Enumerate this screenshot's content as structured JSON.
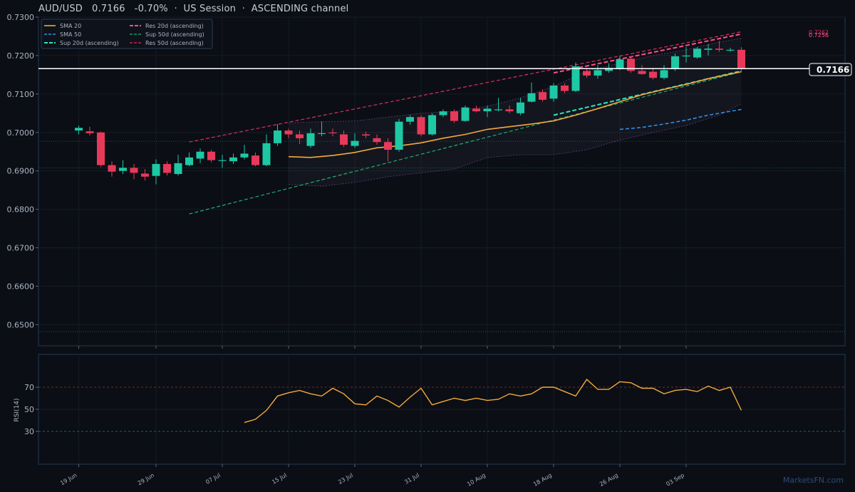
{
  "header": {
    "symbol": "AUD/USD",
    "price": "0.7166",
    "change": "-0.70%",
    "session": "US Session",
    "channel": "ASCENDING channel"
  },
  "watermark": "MarketsFN.com",
  "price_tag": "0.7166",
  "res_label_50d": "0.7262",
  "res_label_20d": "0.7256",
  "colors": {
    "up": "#1ec8a5",
    "down": "#e8395a",
    "sma20": "#f4a93c",
    "sma50": "#2e8fe8",
    "sup20": "#2ee6c1",
    "sup50": "#1fae74",
    "res20": "#ff4f8e",
    "res50": "#d8315b",
    "rsi": "#f4a93c"
  },
  "chart_data": [
    {
      "type": "candlestick",
      "title": "AUD/USD 0.7166 -0.70% · US Session · ASCENDING channel",
      "ylim": [
        0.6445,
        0.73
      ],
      "y_ticks": [
        "0.7300",
        "0.7200",
        "0.7100",
        "0.7000",
        "0.6900",
        "0.6800",
        "0.6700",
        "0.6600",
        "0.6500"
      ],
      "x_ticks": [
        "19 Jun",
        "29 Jun",
        "07 Jul",
        "15 Jul",
        "23 Jul",
        "31 Jul",
        "10 Aug",
        "18 Aug",
        "26 Aug",
        "03 Sep"
      ],
      "x_tick_index": [
        0,
        7,
        13,
        19,
        25,
        31,
        37,
        43,
        49,
        55
      ],
      "legend": [
        "SMA 20",
        "SMA 50",
        "Sup 20d (ascending)",
        "Res 20d (ascending)",
        "Sup 50d (ascending)",
        "Res 50d (ascending)"
      ],
      "legend_position": "top-left",
      "current_price": 0.7166,
      "horizontal_levels": [
        0.6977,
        0.6908,
        0.6482
      ],
      "candles": [
        [
          0.7005,
          0.7012,
          0.7018,
          0.6995
        ],
        [
          0.7003,
          0.6998,
          0.7015,
          0.6992
        ],
        [
          0.7,
          0.6915,
          0.7002,
          0.691
        ],
        [
          0.6915,
          0.6898,
          0.6925,
          0.6885
        ],
        [
          0.69,
          0.6908,
          0.6928,
          0.6892
        ],
        [
          0.6908,
          0.6895,
          0.6918,
          0.6878
        ],
        [
          0.6893,
          0.6885,
          0.6905,
          0.6875
        ],
        [
          0.6887,
          0.6918,
          0.693,
          0.6865
        ],
        [
          0.6918,
          0.6895,
          0.6925,
          0.6888
        ],
        [
          0.6892,
          0.692,
          0.6942,
          0.6888
        ],
        [
          0.6915,
          0.6935,
          0.6948,
          0.6912
        ],
        [
          0.6932,
          0.695,
          0.6958,
          0.692
        ],
        [
          0.695,
          0.6928,
          0.6955,
          0.6922
        ],
        [
          0.6928,
          0.6928,
          0.6942,
          0.6908
        ],
        [
          0.6925,
          0.6935,
          0.6945,
          0.6918
        ],
        [
          0.6935,
          0.6945,
          0.6968,
          0.693
        ],
        [
          0.694,
          0.6915,
          0.6948,
          0.6912
        ],
        [
          0.6915,
          0.6972,
          0.6995,
          0.6912
        ],
        [
          0.6972,
          0.7005,
          0.7022,
          0.6965
        ],
        [
          0.7005,
          0.6995,
          0.701,
          0.6985
        ],
        [
          0.6995,
          0.6985,
          0.7005,
          0.697
        ],
        [
          0.6965,
          0.6998,
          0.701,
          0.696
        ],
        [
          0.6998,
          0.6998,
          0.7028,
          0.699
        ],
        [
          0.7,
          0.6998,
          0.701,
          0.699
        ],
        [
          0.6995,
          0.6968,
          0.7005,
          0.6962
        ],
        [
          0.6965,
          0.6978,
          0.6998,
          0.696
        ],
        [
          0.6995,
          0.6992,
          0.7002,
          0.6985
        ],
        [
          0.6985,
          0.6975,
          0.6995,
          0.6968
        ],
        [
          0.6975,
          0.6955,
          0.6985,
          0.6925
        ],
        [
          0.6955,
          0.7028,
          0.7035,
          0.695
        ],
        [
          0.7028,
          0.704,
          0.7045,
          0.702
        ],
        [
          0.704,
          0.6995,
          0.7045,
          0.699
        ],
        [
          0.6995,
          0.7045,
          0.705,
          0.6992
        ],
        [
          0.7045,
          0.7055,
          0.706,
          0.704
        ],
        [
          0.7055,
          0.703,
          0.706,
          0.7025
        ],
        [
          0.703,
          0.7065,
          0.707,
          0.7028
        ],
        [
          0.7062,
          0.7055,
          0.707,
          0.7052
        ],
        [
          0.7055,
          0.7062,
          0.707,
          0.704
        ],
        [
          0.706,
          0.706,
          0.709,
          0.7055
        ],
        [
          0.706,
          0.7055,
          0.707,
          0.705
        ],
        [
          0.705,
          0.7078,
          0.709,
          0.7045
        ],
        [
          0.708,
          0.7102,
          0.713,
          0.7078
        ],
        [
          0.7105,
          0.7085,
          0.7112,
          0.708
        ],
        [
          0.7088,
          0.7122,
          0.7128,
          0.708
        ],
        [
          0.7122,
          0.7108,
          0.7128,
          0.7102
        ],
        [
          0.7108,
          0.7172,
          0.7182,
          0.7105
        ],
        [
          0.716,
          0.7148,
          0.7168,
          0.7142
        ],
        [
          0.7148,
          0.7162,
          0.7175,
          0.714
        ],
        [
          0.716,
          0.7168,
          0.718,
          0.7155
        ],
        [
          0.7165,
          0.719,
          0.72,
          0.7162
        ],
        [
          0.7192,
          0.716,
          0.7198,
          0.7155
        ],
        [
          0.716,
          0.7152,
          0.7175,
          0.715
        ],
        [
          0.7158,
          0.7142,
          0.7168,
          0.7138
        ],
        [
          0.7142,
          0.7162,
          0.7175,
          0.7138
        ],
        [
          0.7165,
          0.7198,
          0.7205,
          0.716
        ],
        [
          0.7198,
          0.72,
          0.7222,
          0.7182
        ],
        [
          0.7195,
          0.7218,
          0.7222,
          0.7192
        ],
        [
          0.7215,
          0.7218,
          0.723,
          0.72
        ],
        [
          0.7218,
          0.7215,
          0.7238,
          0.721
        ],
        [
          0.7215,
          0.7215,
          0.722,
          0.721
        ],
        [
          0.7215,
          0.7166,
          0.7222,
          0.716
        ]
      ],
      "sma20": [
        [
          19,
          0.6937
        ],
        [
          21,
          0.6935
        ],
        [
          23,
          0.694
        ],
        [
          25,
          0.6948
        ],
        [
          27,
          0.696
        ],
        [
          29,
          0.6965
        ],
        [
          31,
          0.6973
        ],
        [
          33,
          0.6985
        ],
        [
          35,
          0.6995
        ],
        [
          37,
          0.7008
        ],
        [
          39,
          0.7015
        ],
        [
          41,
          0.7022
        ],
        [
          43,
          0.703
        ],
        [
          45,
          0.7045
        ],
        [
          47,
          0.7062
        ],
        [
          49,
          0.708
        ],
        [
          51,
          0.7098
        ],
        [
          53,
          0.7112
        ],
        [
          55,
          0.7125
        ],
        [
          57,
          0.714
        ],
        [
          59,
          0.7152
        ],
        [
          60,
          0.7158
        ]
      ],
      "sma50": [
        [
          49,
          0.7008
        ],
        [
          51,
          0.7013
        ],
        [
          53,
          0.7022
        ],
        [
          55,
          0.7032
        ],
        [
          57,
          0.7045
        ],
        [
          59,
          0.7055
        ],
        [
          60,
          0.706
        ]
      ],
      "bb_upper": [
        [
          19,
          0.7025
        ],
        [
          22,
          0.7028
        ],
        [
          25,
          0.703
        ],
        [
          28,
          0.704
        ],
        [
          31,
          0.705
        ],
        [
          34,
          0.7055
        ],
        [
          37,
          0.7068
        ],
        [
          40,
          0.709
        ],
        [
          43,
          0.712
        ],
        [
          46,
          0.716
        ],
        [
          49,
          0.718
        ],
        [
          52,
          0.72
        ],
        [
          55,
          0.7215
        ],
        [
          58,
          0.7235
        ],
        [
          60,
          0.7245
        ]
      ],
      "bb_lower": [
        [
          19,
          0.6865
        ],
        [
          22,
          0.686
        ],
        [
          25,
          0.687
        ],
        [
          28,
          0.6885
        ],
        [
          31,
          0.6895
        ],
        [
          34,
          0.6905
        ],
        [
          37,
          0.6935
        ],
        [
          40,
          0.6942
        ],
        [
          43,
          0.6942
        ],
        [
          46,
          0.6955
        ],
        [
          49,
          0.698
        ],
        [
          52,
          0.7
        ],
        [
          55,
          0.7018
        ],
        [
          58,
          0.7045
        ],
        [
          60,
          0.7075
        ]
      ],
      "res20": [
        [
          43,
          0.7155
        ],
        [
          60,
          0.7256
        ]
      ],
      "res50": [
        [
          10,
          0.6975
        ],
        [
          60,
          0.7262
        ]
      ],
      "sup20": [
        [
          43,
          0.7045
        ],
        [
          60,
          0.716
        ]
      ],
      "sup50": [
        [
          10,
          0.6788
        ],
        [
          60,
          0.7158
        ]
      ]
    },
    {
      "type": "line",
      "ylabel": "RSI(14)",
      "ylim": [
        0,
        100
      ],
      "y_ticks": [
        30,
        50,
        70
      ],
      "overbought": 70,
      "oversold": 30,
      "rsi": [
        [
          15,
          38
        ],
        [
          16,
          41
        ],
        [
          17,
          49
        ],
        [
          18,
          62
        ],
        [
          19,
          65
        ],
        [
          20,
          67
        ],
        [
          21,
          64
        ],
        [
          22,
          62
        ],
        [
          23,
          69
        ],
        [
          24,
          64
        ],
        [
          25,
          55
        ],
        [
          26,
          54
        ],
        [
          27,
          62
        ],
        [
          28,
          58
        ],
        [
          29,
          52
        ],
        [
          30,
          61
        ],
        [
          31,
          69
        ],
        [
          32,
          54
        ],
        [
          33,
          57
        ],
        [
          34,
          60
        ],
        [
          35,
          58
        ],
        [
          36,
          60
        ],
        [
          37,
          58
        ],
        [
          38,
          59
        ],
        [
          39,
          64
        ],
        [
          40,
          62
        ],
        [
          41,
          64
        ],
        [
          42,
          70
        ],
        [
          43,
          70
        ],
        [
          44,
          66
        ],
        [
          45,
          62
        ],
        [
          46,
          77
        ],
        [
          47,
          68
        ],
        [
          48,
          68
        ],
        [
          49,
          75
        ],
        [
          50,
          74
        ],
        [
          51,
          69
        ],
        [
          52,
          69
        ],
        [
          53,
          64
        ],
        [
          54,
          67
        ],
        [
          55,
          68
        ],
        [
          56,
          66
        ],
        [
          57,
          71
        ],
        [
          58,
          67
        ],
        [
          59,
          70
        ],
        [
          60,
          49
        ]
      ]
    }
  ]
}
